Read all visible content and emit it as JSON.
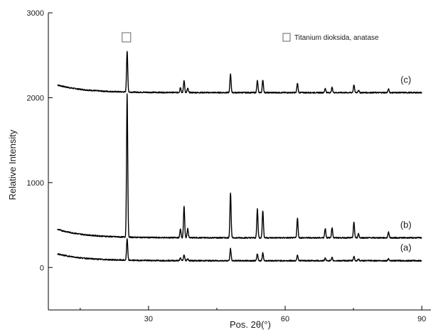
{
  "chart_data": {
    "type": "line",
    "xlabel": "Pos. 2θ(°)",
    "ylabel": "Relative Intensity",
    "xlim": [
      8,
      92
    ],
    "ylim": [
      -500,
      3000
    ],
    "x_ticks": [
      30,
      60,
      90
    ],
    "y_ticks": [
      0,
      1000,
      2000,
      3000
    ],
    "grid": false,
    "legend": {
      "position": "top-right",
      "entries": [
        {
          "marker": "open-square",
          "label": "Titanium dioksida, anatase"
        }
      ]
    },
    "peak_marker": {
      "symbol": "open-square",
      "x": 25.3
    },
    "series": [
      {
        "name": "(c)",
        "x_range": [
          10,
          90
        ],
        "baseline": {
          "start": 2150,
          "end": 2060,
          "decay": 6
        },
        "peaks": [
          {
            "x": 25.3,
            "height": 480
          },
          {
            "x": 37.0,
            "height": 60
          },
          {
            "x": 37.8,
            "height": 140
          },
          {
            "x": 38.6,
            "height": 50
          },
          {
            "x": 48.0,
            "height": 220
          },
          {
            "x": 53.9,
            "height": 140
          },
          {
            "x": 55.1,
            "height": 150
          },
          {
            "x": 62.7,
            "height": 110
          },
          {
            "x": 68.8,
            "height": 50
          },
          {
            "x": 70.3,
            "height": 60
          },
          {
            "x": 75.1,
            "height": 90
          },
          {
            "x": 76.1,
            "height": 30
          },
          {
            "x": 82.7,
            "height": 40
          }
        ]
      },
      {
        "name": "(b)",
        "x_range": [
          10,
          90
        ],
        "baseline": {
          "start": 450,
          "end": 350,
          "decay": 6
        },
        "peaks": [
          {
            "x": 25.3,
            "height": 1680
          },
          {
            "x": 37.0,
            "height": 100
          },
          {
            "x": 37.8,
            "height": 370
          },
          {
            "x": 38.6,
            "height": 110
          },
          {
            "x": 48.0,
            "height": 530
          },
          {
            "x": 53.9,
            "height": 340
          },
          {
            "x": 55.1,
            "height": 320
          },
          {
            "x": 62.7,
            "height": 230
          },
          {
            "x": 68.8,
            "height": 110
          },
          {
            "x": 70.3,
            "height": 120
          },
          {
            "x": 75.1,
            "height": 180
          },
          {
            "x": 76.1,
            "height": 50
          },
          {
            "x": 82.7,
            "height": 70
          }
        ]
      },
      {
        "name": "(a)",
        "x_range": [
          10,
          90
        ],
        "baseline": {
          "start": 160,
          "end": 80,
          "decay": 6
        },
        "peaks": [
          {
            "x": 25.3,
            "height": 250
          },
          {
            "x": 37.0,
            "height": 30
          },
          {
            "x": 37.8,
            "height": 70
          },
          {
            "x": 38.6,
            "height": 25
          },
          {
            "x": 48.0,
            "height": 140
          },
          {
            "x": 53.9,
            "height": 80
          },
          {
            "x": 55.1,
            "height": 90
          },
          {
            "x": 62.7,
            "height": 70
          },
          {
            "x": 68.8,
            "height": 30
          },
          {
            "x": 70.3,
            "height": 35
          },
          {
            "x": 75.1,
            "height": 50
          },
          {
            "x": 76.1,
            "height": 20
          },
          {
            "x": 82.7,
            "height": 25
          }
        ]
      }
    ]
  }
}
